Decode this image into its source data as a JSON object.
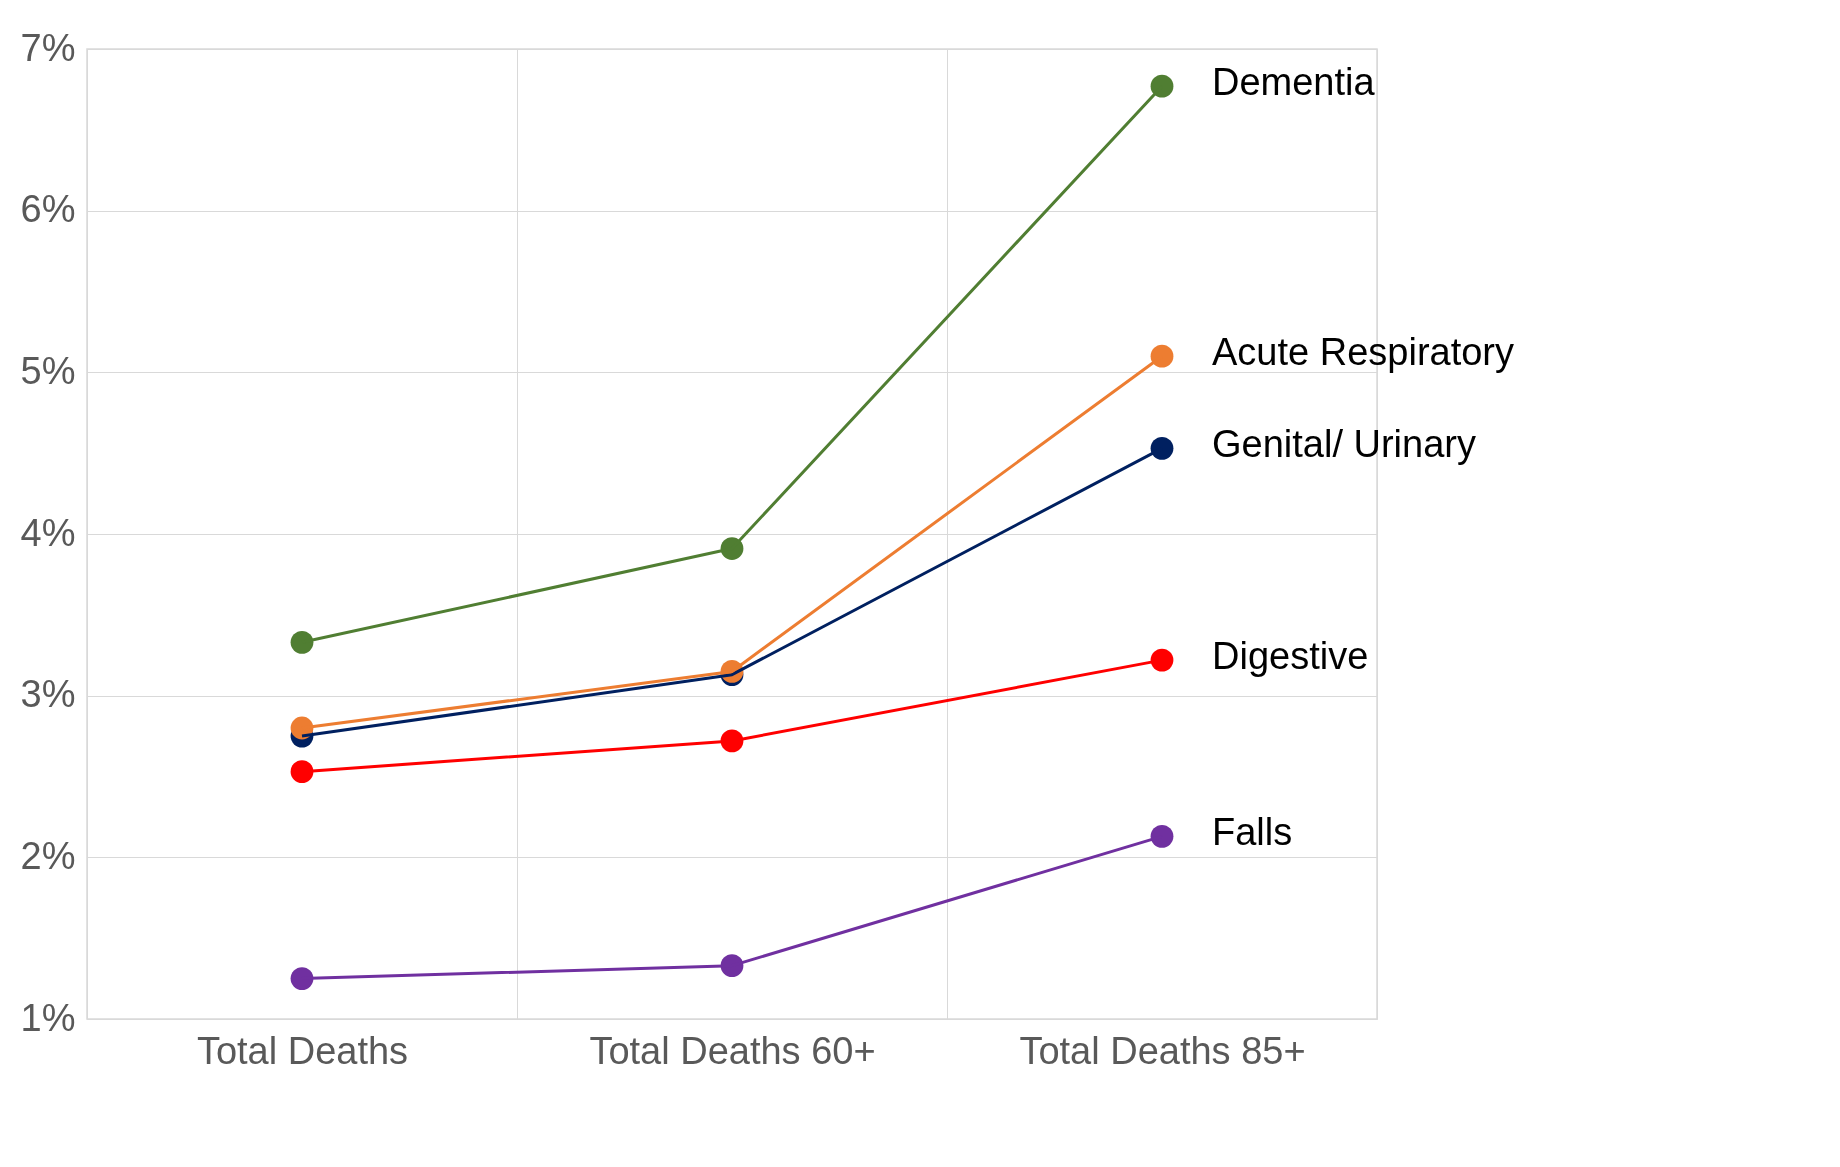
{
  "chart_data": {
    "type": "line",
    "categories": [
      "Total Deaths",
      "Total Deaths 60+",
      "Total Deaths 85+"
    ],
    "series": [
      {
        "name": "Dementia",
        "color": "#507e32",
        "values": [
          3.33,
          3.91,
          6.77
        ]
      },
      {
        "name": "Acute Respiratory",
        "color": "#ed7d31",
        "values": [
          2.8,
          3.15,
          5.1
        ]
      },
      {
        "name": "Genital/ Urinary",
        "color": "#002060",
        "values": [
          2.75,
          3.13,
          4.53
        ]
      },
      {
        "name": "Digestive",
        "color": "#ff0000",
        "values": [
          2.53,
          2.72,
          3.22
        ]
      },
      {
        "name": "Falls",
        "color": "#7030a0",
        "values": [
          1.25,
          1.33,
          2.13
        ]
      }
    ],
    "ylim": [
      1,
      7
    ],
    "yticks": [
      {
        "value": 1,
        "label": "1%"
      },
      {
        "value": 2,
        "label": "2%"
      },
      {
        "value": 3,
        "label": "3%"
      },
      {
        "value": 4,
        "label": "4%"
      },
      {
        "value": 5,
        "label": "5%"
      },
      {
        "value": 6,
        "label": "6%"
      },
      {
        "value": 7,
        "label": "7%"
      }
    ],
    "grid": true,
    "marker": "circle",
    "line_style": "solid"
  }
}
